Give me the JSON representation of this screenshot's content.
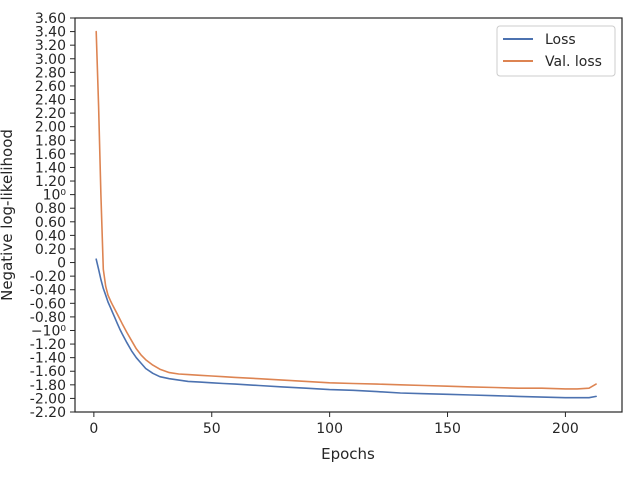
{
  "chart_data": {
    "type": "line",
    "title": "",
    "xlabel": "Epochs",
    "ylabel": "Negative log-likelihood",
    "xlim": [
      -8,
      224
    ],
    "ylim": [
      -2.2,
      3.6
    ],
    "x_ticks": [
      0,
      50,
      100,
      150,
      200
    ],
    "y_ticks": [
      {
        "value": 3.6,
        "label": "3.60"
      },
      {
        "value": 3.4,
        "label": "3.40"
      },
      {
        "value": 3.2,
        "label": "3.20"
      },
      {
        "value": 3.0,
        "label": "3.00"
      },
      {
        "value": 2.8,
        "label": "2.80"
      },
      {
        "value": 2.6,
        "label": "2.60"
      },
      {
        "value": 2.4,
        "label": "2.40"
      },
      {
        "value": 2.2,
        "label": "2.20"
      },
      {
        "value": 2.0,
        "label": "2.00"
      },
      {
        "value": 1.8,
        "label": "1.80"
      },
      {
        "value": 1.6,
        "label": "1.60"
      },
      {
        "value": 1.4,
        "label": "1.40"
      },
      {
        "value": 1.2,
        "label": "1.20"
      },
      {
        "value": 1.0,
        "label": "10⁰"
      },
      {
        "value": 0.8,
        "label": "0.80"
      },
      {
        "value": 0.6,
        "label": "0.60"
      },
      {
        "value": 0.4,
        "label": "0.40"
      },
      {
        "value": 0.2,
        "label": "0.20"
      },
      {
        "value": 0.0,
        "label": "0"
      },
      {
        "value": -0.2,
        "label": "-0.20"
      },
      {
        "value": -0.4,
        "label": "-0.40"
      },
      {
        "value": -0.6,
        "label": "-0.60"
      },
      {
        "value": -0.8,
        "label": "-0.80"
      },
      {
        "value": -1.0,
        "label": "−10⁰"
      },
      {
        "value": -1.2,
        "label": "-1.20"
      },
      {
        "value": -1.4,
        "label": "-1.40"
      },
      {
        "value": -1.6,
        "label": "-1.60"
      },
      {
        "value": -1.8,
        "label": "-1.80"
      },
      {
        "value": -2.0,
        "label": "-2.00"
      },
      {
        "value": -2.2,
        "label": "-2.20"
      }
    ],
    "grid": false,
    "legend_position": "top-right",
    "series": [
      {
        "name": "Loss",
        "color": "#4c72b0",
        "x": [
          1,
          2,
          3,
          4,
          5,
          6,
          7,
          8,
          9,
          10,
          11,
          12,
          14,
          16,
          18,
          20,
          22,
          25,
          28,
          32,
          36,
          40,
          45,
          50,
          55,
          60,
          70,
          80,
          90,
          100,
          110,
          120,
          130,
          140,
          150,
          160,
          170,
          180,
          190,
          200,
          205,
          210,
          213
        ],
        "y": [
          0.05,
          -0.1,
          -0.25,
          -0.38,
          -0.48,
          -0.58,
          -0.66,
          -0.74,
          -0.82,
          -0.9,
          -0.98,
          -1.05,
          -1.18,
          -1.3,
          -1.4,
          -1.48,
          -1.56,
          -1.63,
          -1.68,
          -1.71,
          -1.73,
          -1.75,
          -1.76,
          -1.77,
          -1.78,
          -1.79,
          -1.81,
          -1.83,
          -1.85,
          -1.87,
          -1.88,
          -1.9,
          -1.92,
          -1.93,
          -1.94,
          -1.95,
          -1.96,
          -1.97,
          -1.98,
          -1.99,
          -1.99,
          -1.99,
          -1.97
        ]
      },
      {
        "name": "Val. loss",
        "color": "#dd8452",
        "x": [
          1,
          2,
          3,
          4,
          5,
          6,
          7,
          8,
          10,
          12,
          14,
          16,
          18,
          20,
          22,
          25,
          28,
          32,
          36,
          40,
          45,
          50,
          55,
          60,
          70,
          80,
          90,
          100,
          110,
          120,
          130,
          140,
          150,
          160,
          170,
          180,
          190,
          200,
          205,
          210,
          213
        ],
        "y": [
          3.4,
          2.3,
          1.0,
          -0.1,
          -0.35,
          -0.48,
          -0.56,
          -0.63,
          -0.76,
          -0.9,
          -1.03,
          -1.15,
          -1.27,
          -1.36,
          -1.43,
          -1.51,
          -1.57,
          -1.62,
          -1.64,
          -1.65,
          -1.66,
          -1.67,
          -1.68,
          -1.69,
          -1.71,
          -1.73,
          -1.75,
          -1.77,
          -1.78,
          -1.79,
          -1.8,
          -1.81,
          -1.82,
          -1.83,
          -1.84,
          -1.85,
          -1.85,
          -1.86,
          -1.86,
          -1.85,
          -1.79
        ]
      }
    ]
  }
}
